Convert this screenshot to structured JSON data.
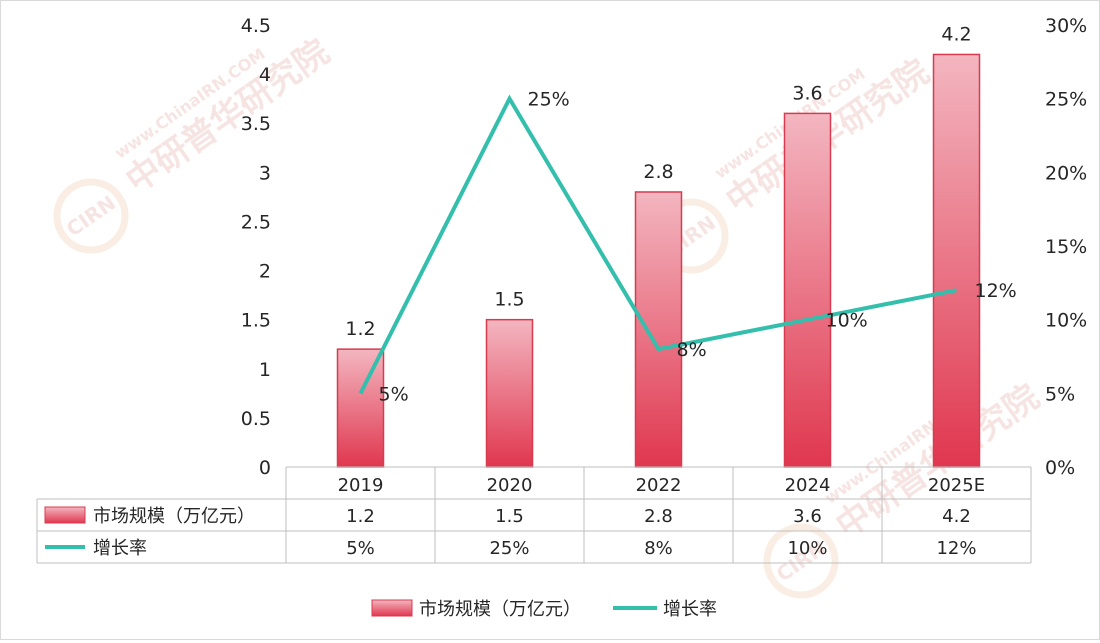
{
  "chart_data": {
    "type": "bar",
    "categories": [
      "2019",
      "2020",
      "2022",
      "2024",
      "2025E"
    ],
    "series": [
      {
        "name": "市场规模（万亿元）",
        "type": "bar",
        "axis": "left",
        "values": [
          1.2,
          1.5,
          2.8,
          3.6,
          4.2
        ],
        "labels": [
          "1.2",
          "1.5",
          "2.8",
          "3.6",
          "4.2"
        ]
      },
      {
        "name": "增长率",
        "type": "line",
        "axis": "right",
        "values": [
          5,
          25,
          8,
          10,
          12
        ],
        "labels": [
          "5%",
          "25%",
          "8%",
          "10%",
          "12%"
        ]
      }
    ],
    "y_left": {
      "ylim": [
        0,
        4.5
      ],
      "ticks": [
        "0",
        "0.5",
        "1",
        "1.5",
        "2",
        "2.5",
        "3",
        "3.5",
        "4",
        "4.5"
      ]
    },
    "y_right": {
      "ylim": [
        0,
        30
      ],
      "ticks": [
        "0%",
        "5%",
        "10%",
        "15%",
        "20%",
        "25%",
        "30%"
      ]
    },
    "data_table": true,
    "legend": "bottom",
    "colors": {
      "bar_top": "#f3b6c0",
      "bar_bottom": "#e0374f",
      "bar_stroke": "#d83b50",
      "line": "#34bfad"
    },
    "watermark": {
      "domain": "www.ChinaIRN.COM",
      "brand": "中研普华研究院",
      "logo": "CIRN"
    }
  }
}
